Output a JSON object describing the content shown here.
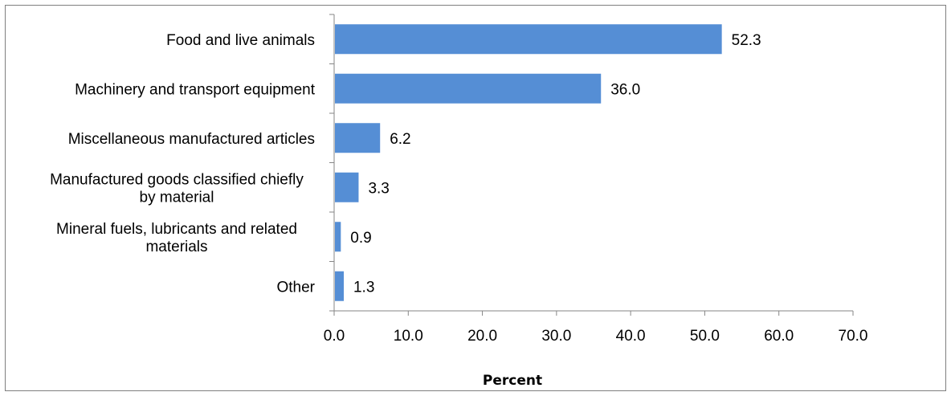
{
  "chart_data": {
    "type": "bar",
    "orientation": "horizontal",
    "categories": [
      "Food and live animals",
      "Machinery and transport equipment",
      "Miscellaneous manufactured articles",
      "Manufactured goods classified chiefly by material",
      "Mineral fuels, lubricants and related materials",
      "Other"
    ],
    "category_lines": [
      [
        "Food and live animals"
      ],
      [
        "Machinery and transport equipment"
      ],
      [
        "Miscellaneous manufactured articles"
      ],
      [
        "Manufactured goods classified chiefly",
        "by material"
      ],
      [
        "Mineral fuels, lubricants and related",
        "materials"
      ],
      [
        "Other"
      ]
    ],
    "values": [
      52.3,
      36.0,
      6.2,
      3.3,
      0.9,
      1.3
    ],
    "value_labels": [
      "52.3",
      "36.0",
      "6.2",
      "3.3",
      "0.9",
      "1.3"
    ],
    "xlabel": "Percent",
    "xlim": [
      0,
      70
    ],
    "xticks": [
      0,
      10,
      20,
      30,
      40,
      50,
      60,
      70
    ],
    "xtick_labels": [
      "0.0",
      "10.0",
      "20.0",
      "30.0",
      "40.0",
      "50.0",
      "60.0",
      "70.0"
    ],
    "grid": false,
    "legend": "none",
    "bar_color": "#558ed5"
  }
}
